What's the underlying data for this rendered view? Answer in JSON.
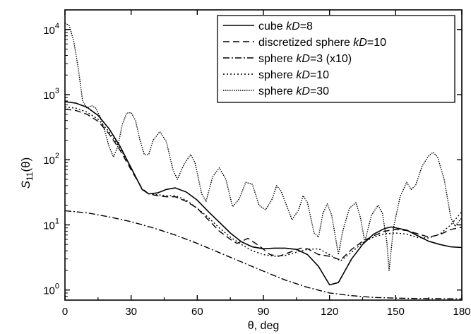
{
  "chart_data": {
    "type": "line",
    "xlabel": "θ, deg",
    "ylabel": {
      "base": "S",
      "sub": "11",
      "tail": "(θ)"
    },
    "xlim": [
      0,
      180
    ],
    "ylim": [
      0.7,
      20000
    ],
    "yscale": "log",
    "xticks": [
      0,
      30,
      60,
      90,
      120,
      150,
      180
    ],
    "yticks": [
      {
        "value": 1,
        "base": "10",
        "exp": "0"
      },
      {
        "value": 10,
        "base": "10",
        "exp": "1"
      },
      {
        "value": 100,
        "base": "10",
        "exp": "2"
      },
      {
        "value": 1000,
        "base": "10",
        "exp": "3"
      },
      {
        "value": 10000,
        "base": "10",
        "exp": "4"
      }
    ],
    "grid": false,
    "legend_position": "top-right",
    "series": [
      {
        "name": "cube kD=8",
        "label_plain": "cube ",
        "label_italic": "kD",
        "label_tail": "=8",
        "style": "solid",
        "points": [
          [
            0,
            780
          ],
          [
            5,
            740
          ],
          [
            10,
            640
          ],
          [
            15,
            480
          ],
          [
            20,
            300
          ],
          [
            25,
            160
          ],
          [
            30,
            75
          ],
          [
            35,
            35
          ],
          [
            38,
            30
          ],
          [
            42,
            31
          ],
          [
            46,
            35
          ],
          [
            50,
            37
          ],
          [
            55,
            32
          ],
          [
            60,
            24
          ],
          [
            65,
            16
          ],
          [
            70,
            11
          ],
          [
            75,
            7.5
          ],
          [
            80,
            5.5
          ],
          [
            85,
            4.6
          ],
          [
            90,
            4.3
          ],
          [
            95,
            4.4
          ],
          [
            100,
            4.4
          ],
          [
            105,
            4.2
          ],
          [
            110,
            3.5
          ],
          [
            115,
            2.3
          ],
          [
            120,
            1.2
          ],
          [
            124,
            1.3
          ],
          [
            130,
            3.0
          ],
          [
            135,
            5.0
          ],
          [
            140,
            7.2
          ],
          [
            145,
            8.8
          ],
          [
            148,
            9.3
          ],
          [
            155,
            8.3
          ],
          [
            160,
            6.8
          ],
          [
            165,
            5.6
          ],
          [
            170,
            5.0
          ],
          [
            175,
            4.6
          ],
          [
            180,
            4.5
          ]
        ]
      },
      {
        "name": "discretized sphere kD=10",
        "label_plain": "discretized sphere ",
        "label_italic": "kD",
        "label_tail": "=10",
        "style": "dash",
        "points": [
          [
            0,
            600
          ],
          [
            5,
            570
          ],
          [
            10,
            500
          ],
          [
            15,
            390
          ],
          [
            20,
            250
          ],
          [
            25,
            140
          ],
          [
            30,
            70
          ],
          [
            35,
            36
          ],
          [
            38,
            30
          ],
          [
            42,
            28
          ],
          [
            46,
            27
          ],
          [
            50,
            27
          ],
          [
            55,
            23
          ],
          [
            60,
            18
          ],
          [
            65,
            12
          ],
          [
            70,
            8
          ],
          [
            75,
            6
          ],
          [
            78,
            5.2
          ],
          [
            83,
            6.2
          ],
          [
            88,
            4.8
          ],
          [
            93,
            3.5
          ],
          [
            97,
            3.3
          ],
          [
            102,
            3.8
          ],
          [
            107,
            4.4
          ],
          [
            110,
            4.3
          ],
          [
            115,
            3.5
          ],
          [
            120,
            3.3
          ],
          [
            125,
            2.9
          ],
          [
            130,
            4.2
          ],
          [
            135,
            5.6
          ],
          [
            140,
            6.8
          ],
          [
            145,
            8.0
          ],
          [
            150,
            8.5
          ],
          [
            155,
            8.2
          ],
          [
            160,
            7.3
          ],
          [
            165,
            6.5
          ],
          [
            170,
            7.1
          ],
          [
            175,
            8.5
          ],
          [
            180,
            9.2
          ]
        ]
      },
      {
        "name": "sphere kD=3 (x10)",
        "label_plain": "sphere ",
        "label_italic": "kD",
        "label_tail": "=3 (x10)",
        "style": "dashdot",
        "points": [
          [
            0,
            16.5
          ],
          [
            10,
            15.3
          ],
          [
            20,
            13.3
          ],
          [
            30,
            11.2
          ],
          [
            40,
            9.0
          ],
          [
            50,
            7.0
          ],
          [
            60,
            5.2
          ],
          [
            70,
            3.75
          ],
          [
            80,
            2.7
          ],
          [
            90,
            1.95
          ],
          [
            100,
            1.42
          ],
          [
            110,
            1.1
          ],
          [
            120,
            0.9
          ],
          [
            130,
            0.82
          ],
          [
            140,
            0.77
          ],
          [
            150,
            0.75
          ],
          [
            160,
            0.74
          ],
          [
            170,
            0.735
          ],
          [
            180,
            0.73
          ]
        ]
      },
      {
        "name": "sphere kD=10",
        "label_plain": "sphere ",
        "label_italic": "kD",
        "label_tail": "=10",
        "style": "dot",
        "points": [
          [
            0,
            650
          ],
          [
            5,
            620
          ],
          [
            10,
            540
          ],
          [
            15,
            420
          ],
          [
            20,
            270
          ],
          [
            25,
            150
          ],
          [
            30,
            75
          ],
          [
            35,
            35
          ],
          [
            38,
            30
          ],
          [
            42,
            29
          ],
          [
            46,
            28
          ],
          [
            50,
            28
          ],
          [
            55,
            24
          ],
          [
            60,
            18
          ],
          [
            65,
            13
          ],
          [
            70,
            9
          ],
          [
            75,
            6.5
          ],
          [
            80,
            5
          ],
          [
            85,
            4
          ],
          [
            90,
            3.5
          ],
          [
            95,
            3.3
          ],
          [
            100,
            3.4
          ],
          [
            105,
            3.8
          ],
          [
            110,
            4.2
          ],
          [
            115,
            4.3
          ],
          [
            118,
            3.8
          ],
          [
            122,
            3.2
          ],
          [
            125,
            2.8
          ],
          [
            130,
            3.8
          ],
          [
            135,
            5.3
          ],
          [
            140,
            6.5
          ],
          [
            145,
            7.3
          ],
          [
            150,
            7.5
          ],
          [
            155,
            7.2
          ],
          [
            160,
            6.4
          ],
          [
            165,
            6.3
          ],
          [
            170,
            7.2
          ],
          [
            175,
            10
          ],
          [
            180,
            16
          ]
        ]
      },
      {
        "name": "sphere kD=30",
        "label_plain": "sphere ",
        "label_italic": "kD",
        "label_tail": "=30",
        "style": "densedot",
        "points": [
          [
            0,
            12500
          ],
          [
            2,
            11500
          ],
          [
            4,
            6500
          ],
          [
            6,
            2600
          ],
          [
            8,
            800
          ],
          [
            10,
            620
          ],
          [
            12,
            680
          ],
          [
            14,
            620
          ],
          [
            16,
            450
          ],
          [
            18,
            280
          ],
          [
            20,
            160
          ],
          [
            22,
            110
          ],
          [
            24,
            160
          ],
          [
            26,
            350
          ],
          [
            28,
            520
          ],
          [
            30,
            530
          ],
          [
            32,
            400
          ],
          [
            34,
            200
          ],
          [
            36,
            120
          ],
          [
            38,
            120
          ],
          [
            40,
            200
          ],
          [
            43,
            270
          ],
          [
            46,
            190
          ],
          [
            49,
            70
          ],
          [
            51,
            50
          ],
          [
            54,
            85
          ],
          [
            57,
            120
          ],
          [
            59,
            90
          ],
          [
            62,
            30
          ],
          [
            64,
            23
          ],
          [
            67,
            55
          ],
          [
            70,
            75
          ],
          [
            73,
            50
          ],
          [
            76,
            19
          ],
          [
            79,
            25
          ],
          [
            82,
            45
          ],
          [
            85,
            42
          ],
          [
            88,
            20
          ],
          [
            91,
            17
          ],
          [
            94,
            25
          ],
          [
            96,
            40
          ],
          [
            98,
            33
          ],
          [
            101,
            18
          ],
          [
            103,
            12
          ],
          [
            106,
            17
          ],
          [
            108,
            28
          ],
          [
            110,
            22
          ],
          [
            113,
            7.5
          ],
          [
            115,
            6.5
          ],
          [
            117,
            15
          ],
          [
            119,
            21
          ],
          [
            121,
            14
          ],
          [
            124,
            3.5
          ],
          [
            126,
            8
          ],
          [
            129,
            18
          ],
          [
            132,
            22
          ],
          [
            134,
            13
          ],
          [
            136,
            5.5
          ],
          [
            139,
            14
          ],
          [
            142,
            20
          ],
          [
            144,
            15
          ],
          [
            146,
            5.5
          ],
          [
            147,
            2.0
          ],
          [
            149,
            9
          ],
          [
            152,
            27
          ],
          [
            155,
            45
          ],
          [
            157,
            35
          ],
          [
            159,
            40
          ],
          [
            162,
            80
          ],
          [
            165,
            115
          ],
          [
            167,
            130
          ],
          [
            169,
            110
          ],
          [
            172,
            50
          ],
          [
            175,
            13
          ],
          [
            177,
            9.5
          ],
          [
            180,
            13
          ]
        ]
      }
    ]
  }
}
